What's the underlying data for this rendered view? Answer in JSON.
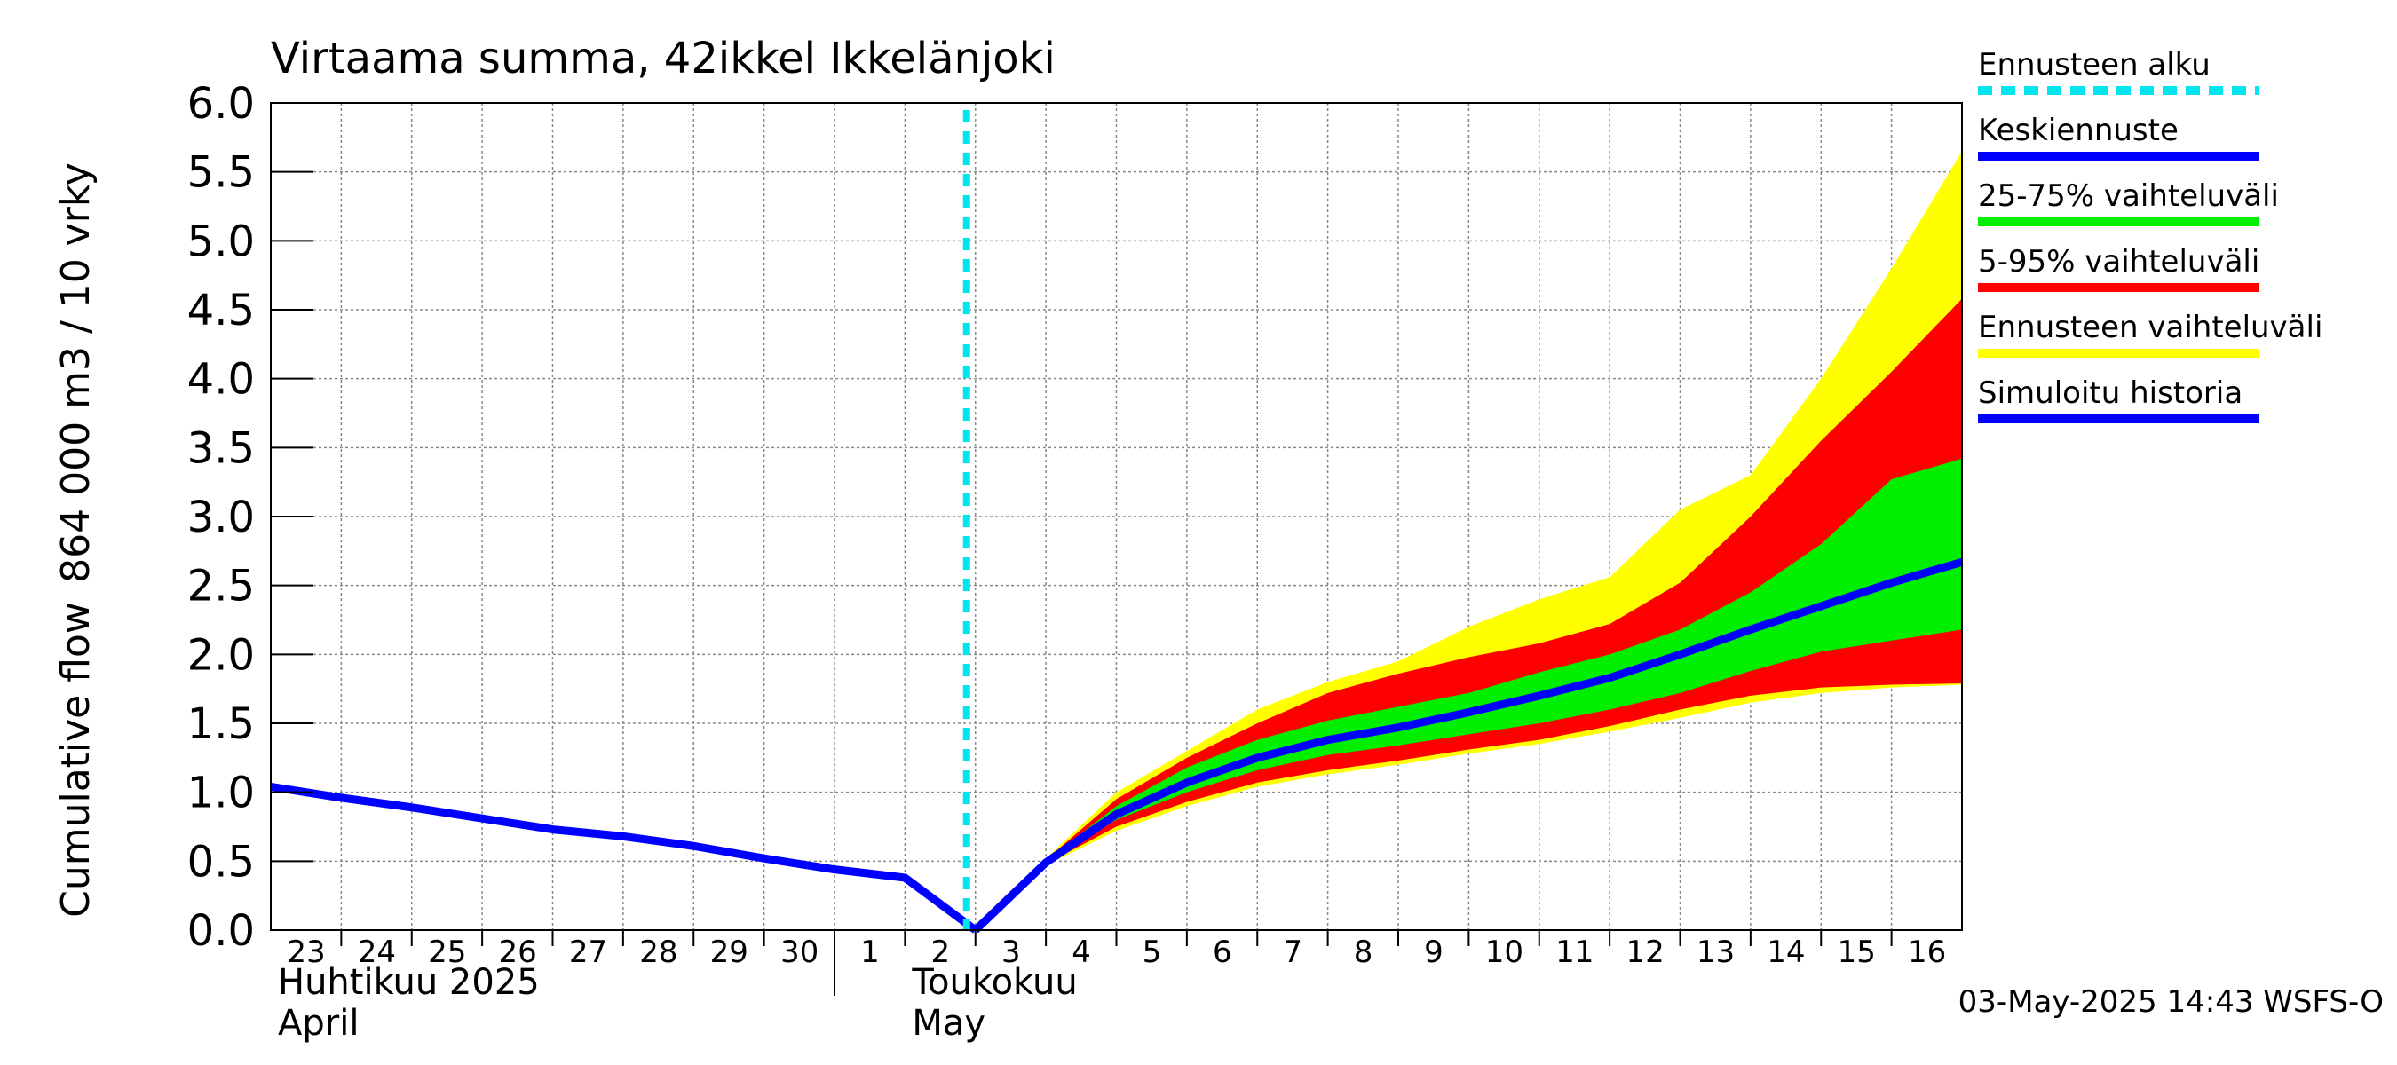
{
  "chart_data": {
    "type": "area",
    "title": "Virtaama summa, 42ikkel Ikkelänjoki",
    "ylabel_line1": "864 000 m3 / 10 vrky",
    "ylabel_line2": "Cumulative flow",
    "ylim": [
      0,
      6
    ],
    "yticks": [
      "0.0",
      "0.5",
      "1.0",
      "1.5",
      "2.0",
      "2.5",
      "3.0",
      "3.5",
      "4.0",
      "4.5",
      "5.0",
      "5.5",
      "6.0"
    ],
    "xlim": [
      0,
      24
    ],
    "xtick_labels": [
      "23",
      "24",
      "25",
      "26",
      "27",
      "28",
      "29",
      "30",
      "1",
      "2",
      "3",
      "4",
      "5",
      "6",
      "7",
      "8",
      "9",
      "10",
      "11",
      "12",
      "13",
      "14",
      "15",
      "16"
    ],
    "month_labels": [
      {
        "line1": "Huhtikuu  2025",
        "line2": "April",
        "x": 0
      },
      {
        "line1": "Toukokuu",
        "line2": "May",
        "x": 9
      }
    ],
    "month_separator_x": 8,
    "forecast_start_x": 10,
    "legend": [
      {
        "label": "Ennusteen alku",
        "color": "#00e5ee",
        "style": "dashed"
      },
      {
        "label": "Keskiennuste",
        "color": "#0000ff",
        "style": "solid"
      },
      {
        "label": "25-75% vaihteluväli",
        "color": "#00ee00",
        "style": "solid"
      },
      {
        "label": "5-95% vaihteluväli",
        "color": "#ff0000",
        "style": "solid"
      },
      {
        "label": "Ennusteen vaihteluväli",
        "color": "#ffff00",
        "style": "solid"
      },
      {
        "label": "Simuloitu historia",
        "color": "#0000ff",
        "style": "solid"
      }
    ],
    "history": {
      "name": "Simuloitu historia",
      "x": [
        0,
        1,
        2,
        3,
        4,
        5,
        6,
        7,
        8,
        9,
        10
      ],
      "y": [
        1.04,
        0.96,
        0.89,
        0.81,
        0.73,
        0.68,
        0.61,
        0.52,
        0.44,
        0.38,
        0.0
      ]
    },
    "forecast_x": [
      10,
      11,
      12,
      13,
      14,
      15,
      16,
      17,
      18,
      19,
      20,
      21,
      22,
      23,
      24
    ],
    "series": [
      {
        "name": "Ennusteen vaihteluväli",
        "color": "#ffff00",
        "lower": [
          0.0,
          0.47,
          0.72,
          0.9,
          1.04,
          1.13,
          1.2,
          1.28,
          1.35,
          1.44,
          1.54,
          1.65,
          1.72,
          1.76,
          1.78
        ],
        "upper": [
          0.0,
          0.52,
          1.0,
          1.3,
          1.6,
          1.8,
          1.95,
          2.2,
          2.4,
          2.56,
          3.05,
          3.3,
          4.0,
          4.8,
          5.65
        ]
      },
      {
        "name": "5-95% vaihteluväli",
        "color": "#ff0000",
        "lower": [
          0.0,
          0.48,
          0.75,
          0.93,
          1.07,
          1.16,
          1.23,
          1.31,
          1.38,
          1.48,
          1.6,
          1.7,
          1.76,
          1.78,
          1.79
        ],
        "upper": [
          0.0,
          0.51,
          0.95,
          1.25,
          1.5,
          1.72,
          1.86,
          1.98,
          2.08,
          2.22,
          2.52,
          3.0,
          3.55,
          4.05,
          4.58
        ]
      },
      {
        "name": "25-75% vaihteluväli",
        "color": "#00ee00",
        "lower": [
          0.0,
          0.49,
          0.8,
          1.0,
          1.16,
          1.27,
          1.34,
          1.42,
          1.5,
          1.6,
          1.72,
          1.88,
          2.02,
          2.1,
          2.18
        ],
        "upper": [
          0.0,
          0.5,
          0.9,
          1.18,
          1.38,
          1.52,
          1.62,
          1.72,
          1.87,
          2.0,
          2.18,
          2.45,
          2.8,
          3.27,
          3.42
        ]
      },
      {
        "name": "Keskiennuste",
        "color": "#0000ff",
        "values": [
          0.0,
          0.49,
          0.84,
          1.07,
          1.25,
          1.38,
          1.47,
          1.58,
          1.7,
          1.83,
          2.0,
          2.18,
          2.35,
          2.52,
          2.67
        ]
      }
    ],
    "timestamp": "03-May-2025 14:43 WSFS-O"
  }
}
